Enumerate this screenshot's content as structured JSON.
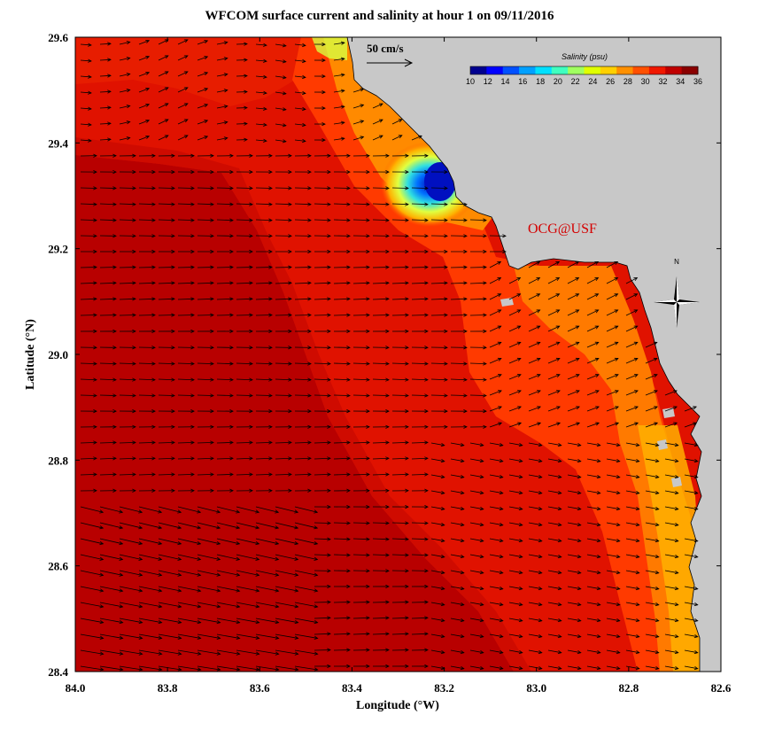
{
  "title": "WFCOM surface current and salinity at hour 1 on 09/11/2016",
  "xlabel": "Longitude (°W)",
  "ylabel": "Latitude (°N)",
  "x_ticks": [
    "84.0",
    "83.8",
    "83.6",
    "83.4",
    "83.2",
    "83.0",
    "82.8",
    "82.6"
  ],
  "y_ticks": [
    "29.6",
    "29.4",
    "29.2",
    "29.0",
    "28.8",
    "28.6",
    "28.4"
  ],
  "reference_vector": {
    "label": "50 cm/s",
    "speed_cm_s": 50
  },
  "colorbar": {
    "title": "Salinity (psu)",
    "ticks": [
      "10",
      "12",
      "14",
      "16",
      "18",
      "20",
      "22",
      "24",
      "26",
      "28",
      "30",
      "32",
      "34",
      "36"
    ],
    "colors": [
      "#00008f",
      "#0000ff",
      "#0050ff",
      "#00a0ff",
      "#00e0ff",
      "#40ffc0",
      "#a0ff60",
      "#e0ff00",
      "#ffd000",
      "#ff9000",
      "#ff5000",
      "#f01800",
      "#c00000",
      "#8a0000"
    ]
  },
  "credit": "OCG@USF",
  "compass_label": "N",
  "colors": {
    "land": "#c8c8c8",
    "deep_red": "#b80000",
    "red": "#e01200",
    "orange_red": "#ff3a00",
    "orange": "#ff7a00",
    "arrow": "#000000"
  },
  "map_extent": {
    "lon_west": 84.0,
    "lon_east": 82.6,
    "lat_south": 28.4,
    "lat_north": 29.6
  }
}
